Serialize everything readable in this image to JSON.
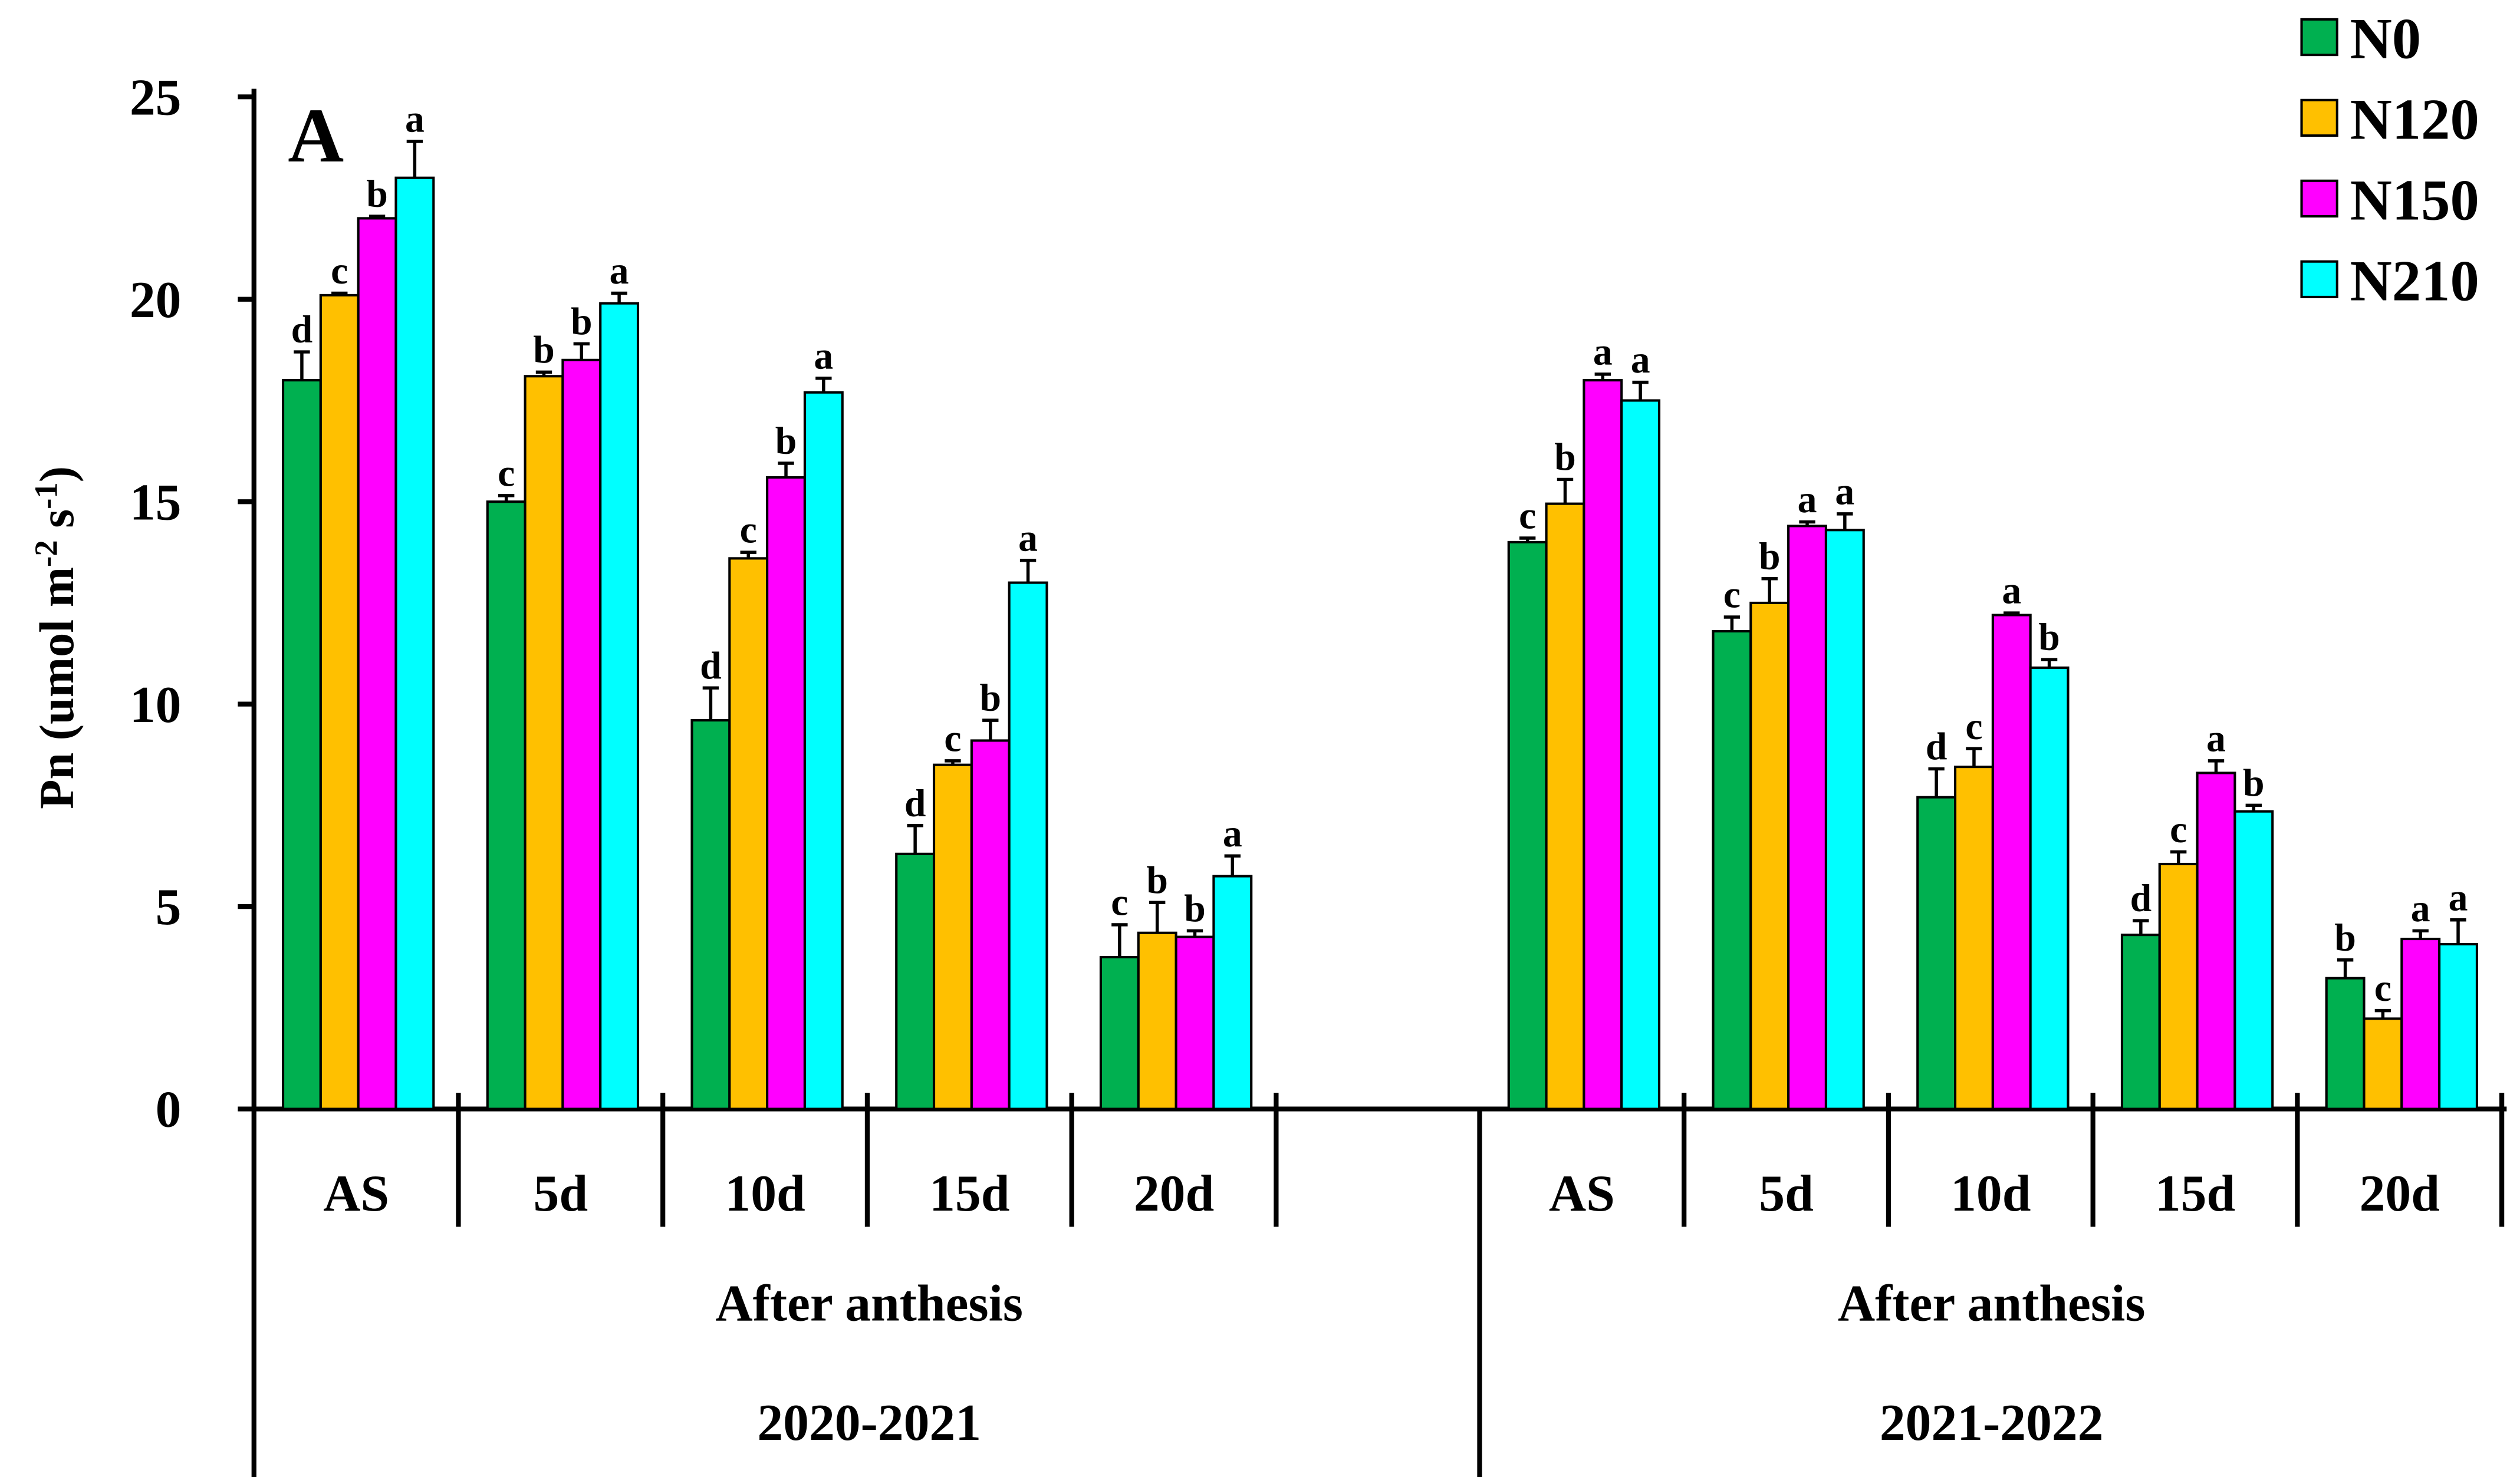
{
  "chart_data": {
    "type": "bar",
    "panel_label": "A",
    "ylabel": "Pn (umol m-2 s-1)",
    "ylabel_parts": {
      "main": "Pn (umol m",
      "sup1": "-2",
      "mid": " s",
      "sup2": "-1",
      "end": ")"
    },
    "ylim": [
      0,
      25
    ],
    "yticks": [
      0,
      5,
      10,
      15,
      20,
      25
    ],
    "legend_position": "top-right",
    "series_names": [
      "N0",
      "N120",
      "N150",
      "N210"
    ],
    "colors": [
      "#00b050",
      "#ffc000",
      "#ff00ff",
      "#00ffff"
    ],
    "groups": [
      {
        "xlabel": "After anthesis",
        "year": "2020-2021",
        "categories": [
          "AS",
          "5d",
          "10d",
          "15d",
          "20d"
        ],
        "values": [
          [
            18.0,
            20.1,
            22.0,
            23.0
          ],
          [
            15.0,
            18.1,
            18.5,
            19.9
          ],
          [
            9.6,
            13.6,
            15.6,
            17.7
          ],
          [
            6.3,
            8.5,
            9.1,
            13.0
          ],
          [
            3.75,
            4.35,
            4.25,
            5.75
          ]
        ],
        "errors": [
          [
            0.7,
            0.05,
            0.05,
            0.9
          ],
          [
            0.15,
            0.1,
            0.4,
            0.25
          ],
          [
            0.8,
            0.15,
            0.35,
            0.35
          ],
          [
            0.7,
            0.1,
            0.5,
            0.55
          ],
          [
            0.8,
            0.75,
            0.15,
            0.5
          ]
        ],
        "letters": [
          [
            "d",
            "c",
            "b",
            "a"
          ],
          [
            "c",
            "b",
            "b",
            "a"
          ],
          [
            "d",
            "c",
            "b",
            "a"
          ],
          [
            "d",
            "c",
            "b",
            "a"
          ],
          [
            "c",
            "b",
            "b",
            "a"
          ]
        ]
      },
      {
        "xlabel": "After anthesis",
        "year": "2021-2022",
        "categories": [
          "AS",
          "5d",
          "10d",
          "15d",
          "20d"
        ],
        "values": [
          [
            14.0,
            14.95,
            18.0,
            17.5
          ],
          [
            11.8,
            12.5,
            14.4,
            14.3
          ],
          [
            7.7,
            8.45,
            12.2,
            10.9
          ],
          [
            4.3,
            6.05,
            8.3,
            7.35
          ],
          [
            3.23,
            2.23,
            4.2,
            4.07
          ]
        ],
        "errors": [
          [
            0.1,
            0.6,
            0.15,
            0.45
          ],
          [
            0.35,
            0.6,
            0.1,
            0.4
          ],
          [
            0.7,
            0.45,
            0.05,
            0.2
          ],
          [
            0.35,
            0.3,
            0.3,
            0.15
          ],
          [
            0.45,
            0.2,
            0.2,
            0.6
          ]
        ],
        "letters": [
          [
            "c",
            "b",
            "a",
            "a"
          ],
          [
            "c",
            "b",
            "a",
            "a"
          ],
          [
            "d",
            "c",
            "a",
            "b"
          ],
          [
            "d",
            "c",
            "a",
            "b"
          ],
          [
            "b",
            "c",
            "a",
            "a"
          ]
        ]
      }
    ]
  }
}
